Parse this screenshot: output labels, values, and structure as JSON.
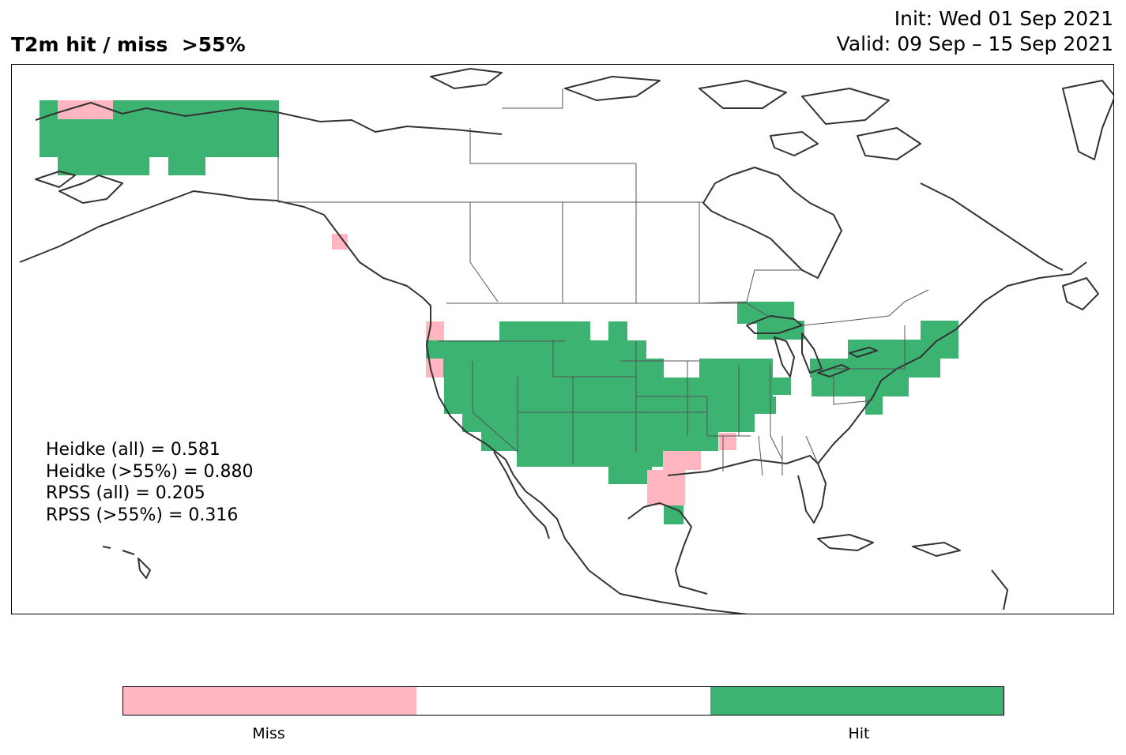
{
  "title": "T2m hit / miss  >55%",
  "init_line": "Init: Wed 01 Sep 2021",
  "valid_line": "Valid: 09 Sep – 15 Sep 2021",
  "stats": {
    "heidke_all": "Heidke (all) = 0.581",
    "heidke_55": "Heidke (>55%) = 0.880",
    "rpss_all": "RPSS (all) = 0.205",
    "rpss_55": "RPSS (>55%) = 0.316"
  },
  "legend": {
    "miss_label": "Miss",
    "hit_label": "Hit"
  },
  "colors": {
    "miss": "#ffb6c1",
    "neutral": "#ffffff",
    "hit": "#3cb371",
    "coast": "#333333"
  }
}
